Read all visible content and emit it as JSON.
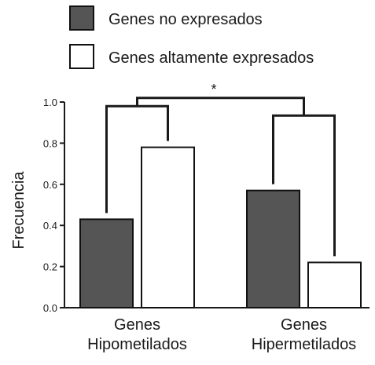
{
  "chart_data": {
    "type": "bar",
    "title": "",
    "xlabel": "",
    "ylabel": "Frecuencia",
    "ylim": [
      0,
      1.0
    ],
    "yticks": [
      "0.0",
      "0.2",
      "0.4",
      "0.6",
      "0.8",
      "1.0"
    ],
    "categories": [
      [
        "Genes",
        "Hipometilados"
      ],
      [
        "Genes",
        "Hipermetilados"
      ]
    ],
    "series": [
      {
        "name": "Genes no expresados",
        "values": [
          0.43,
          0.57
        ],
        "color": "#555555"
      },
      {
        "name": "Genes altamente expresados",
        "values": [
          0.78,
          0.22
        ],
        "color": "#ffffff"
      }
    ],
    "grid": false,
    "legend_position": "top",
    "annotations": {
      "significance": "*"
    }
  }
}
